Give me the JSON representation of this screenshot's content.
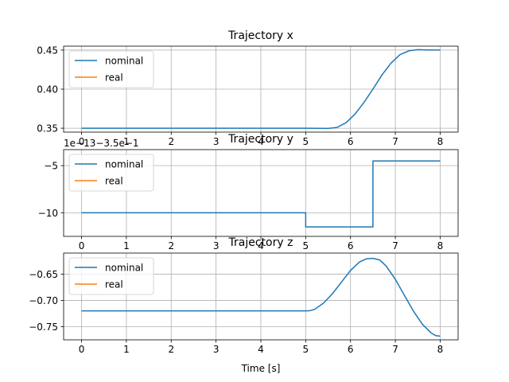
{
  "chart_data": [
    {
      "type": "line",
      "title": "Trajectory x",
      "xlabel": "",
      "ylabel": "",
      "xlim": [
        -0.4,
        8.4
      ],
      "ylim": [
        0.345,
        0.455
      ],
      "x_ticks": [
        "0",
        "1",
        "2",
        "3",
        "4",
        "5",
        "6",
        "7",
        "8"
      ],
      "y_ticks": [
        0.35,
        0.4,
        0.45
      ],
      "y_tick_labels": [
        "0.35",
        "0.40",
        "0.45"
      ],
      "grid": true,
      "legend": {
        "placement": "upper-left",
        "entries": [
          "nominal",
          "real"
        ]
      },
      "series": [
        {
          "name": "nominal",
          "color": "#1f77b4",
          "x": [
            0,
            5.0,
            5.3,
            5.5,
            5.7,
            5.9,
            6.1,
            6.3,
            6.5,
            6.7,
            6.9,
            7.1,
            7.3,
            7.5,
            7.7,
            8.0
          ],
          "y": [
            0.35,
            0.35,
            0.3498,
            0.3497,
            0.351,
            0.357,
            0.368,
            0.383,
            0.4,
            0.418,
            0.433,
            0.444,
            0.449,
            0.4505,
            0.4502,
            0.45
          ]
        },
        {
          "name": "real",
          "color": "#ff7f0e",
          "x": [],
          "y": []
        }
      ]
    },
    {
      "type": "line",
      "title": "Trajectory y",
      "xlabel": "",
      "ylabel": "",
      "offset_label": "1e−13−3.5e−1",
      "xlim": [
        -0.4,
        8.4
      ],
      "ylim": [
        -12.5,
        -3.3
      ],
      "x_ticks": [
        "0",
        "1",
        "2",
        "3",
        "4",
        "5",
        "6",
        "7",
        "8"
      ],
      "y_ticks": [
        -10,
        -5
      ],
      "y_tick_labels": [
        "−10",
        "−5"
      ],
      "grid": true,
      "legend": {
        "placement": "upper-left",
        "entries": [
          "nominal",
          "real"
        ]
      },
      "series": [
        {
          "name": "nominal",
          "color": "#1f77b4",
          "x": [
            0,
            5.0,
            5.0,
            6.5,
            6.5,
            8.0
          ],
          "y": [
            -10,
            -10,
            -11.5,
            -11.5,
            -4.5,
            -4.5
          ]
        },
        {
          "name": "real",
          "color": "#ff7f0e",
          "x": [],
          "y": []
        }
      ]
    },
    {
      "type": "line",
      "title": "Trajectory z",
      "xlabel": "Time [s]",
      "ylabel": "",
      "xlim": [
        -0.4,
        8.4
      ],
      "ylim": [
        -0.775,
        -0.61
      ],
      "x_ticks": [
        "0",
        "1",
        "2",
        "3",
        "4",
        "5",
        "6",
        "7",
        "8"
      ],
      "y_ticks": [
        -0.75,
        -0.7,
        -0.65
      ],
      "y_tick_labels": [
        "−0.75",
        "−0.70",
        "−0.65"
      ],
      "grid": true,
      "legend": {
        "placement": "upper-left",
        "entries": [
          "nominal",
          "real"
        ]
      },
      "series": [
        {
          "name": "nominal",
          "color": "#1f77b4",
          "x": [
            0,
            5.0,
            5.1,
            5.2,
            5.4,
            5.6,
            5.8,
            6.0,
            6.2,
            6.35,
            6.5,
            6.65,
            6.8,
            7.0,
            7.2,
            7.4,
            7.6,
            7.8,
            7.9,
            8.0
          ],
          "y": [
            -0.72,
            -0.72,
            -0.7195,
            -0.717,
            -0.705,
            -0.687,
            -0.665,
            -0.643,
            -0.627,
            -0.621,
            -0.62,
            -0.623,
            -0.635,
            -0.66,
            -0.69,
            -0.72,
            -0.745,
            -0.762,
            -0.767,
            -0.768
          ]
        },
        {
          "name": "real",
          "color": "#ff7f0e",
          "x": [],
          "y": []
        }
      ]
    }
  ]
}
